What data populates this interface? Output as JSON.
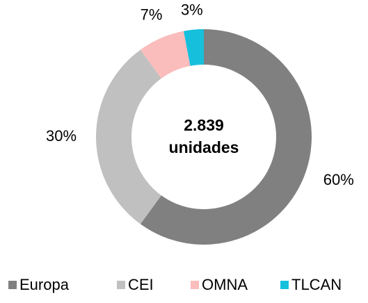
{
  "chart_data": {
    "type": "donut",
    "categories": [
      "Europa",
      "CEI",
      "OMNA",
      "TLCAN"
    ],
    "values": [
      60,
      30,
      7,
      3
    ],
    "value_labels": [
      "60%",
      "30%",
      "7%",
      "3%"
    ],
    "colors": [
      "#808080",
      "#c0c0c0",
      "#fbbcbc",
      "#16c0dc"
    ],
    "center_text": [
      "2.839",
      "unidades"
    ],
    "legend": "bottom"
  }
}
